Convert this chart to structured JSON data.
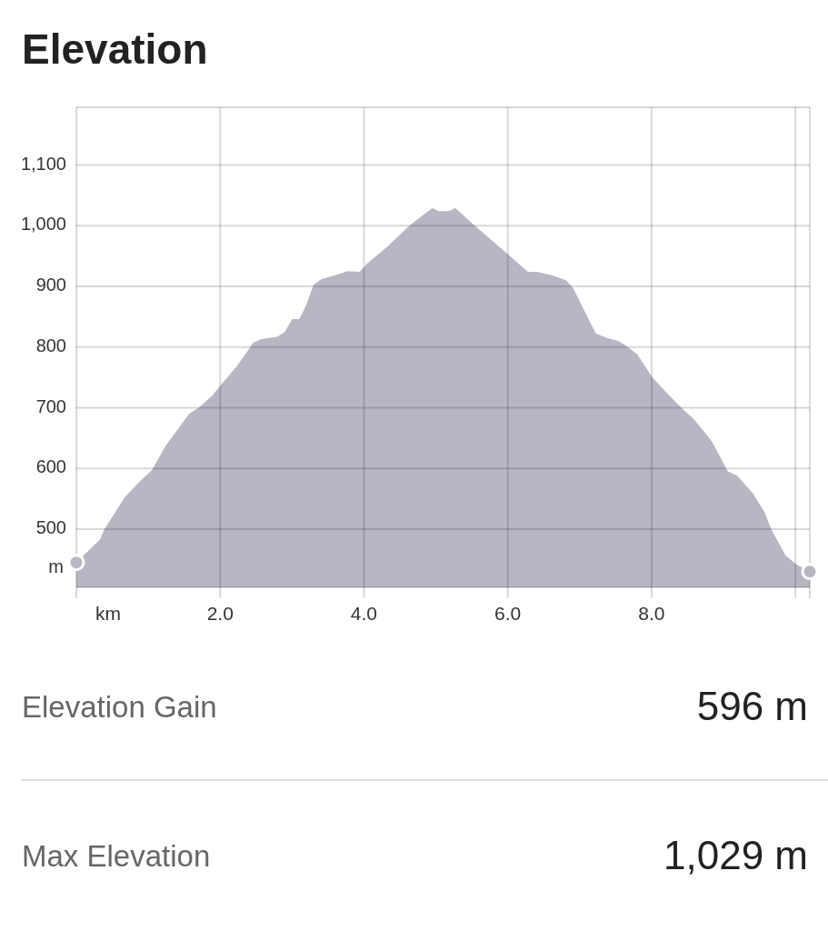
{
  "chart_data": {
    "type": "area",
    "title": "Elevation",
    "xlabel": "km",
    "ylabel": "m",
    "xlim": [
      0,
      10.2
    ],
    "ylim": [
      404,
      1195
    ],
    "xticks": [
      {
        "value": 0,
        "label": null
      },
      {
        "value": 2,
        "label": "2.0"
      },
      {
        "value": 4,
        "label": "4.0"
      },
      {
        "value": 6,
        "label": "6.0"
      },
      {
        "value": 8,
        "label": "8.0"
      },
      {
        "value": 10,
        "label": null
      }
    ],
    "yticks": [
      500,
      600,
      700,
      800,
      900,
      {
        "value": 1000,
        "label": "1,000"
      },
      {
        "value": 1100,
        "label": "1,100"
      }
    ],
    "grid": true,
    "series": [
      {
        "color": "#b7b7c4",
        "x": [
          0,
          0.2,
          0.33,
          0.39,
          0.67,
          0.88,
          1.05,
          1.24,
          1.57,
          1.7,
          1.89,
          2.02,
          2.23,
          2.46,
          2.57,
          2.8,
          2.9,
          3.0,
          3.1,
          3.2,
          3.3,
          3.41,
          3.62,
          3.77,
          3.94,
          4.04,
          4.34,
          4.63,
          4.95,
          5.04,
          5.18,
          5.27,
          5.52,
          6.01,
          6.28,
          6.41,
          6.62,
          6.81,
          6.91,
          7.16,
          7.23,
          7.38,
          7.54,
          7.67,
          7.8,
          8.01,
          8.22,
          8.43,
          8.58,
          8.77,
          8.85,
          9.06,
          9.19,
          9.4,
          9.57,
          9.67,
          9.86,
          10.01,
          10.2
        ],
        "values": [
          445,
          468,
          483,
          500,
          552,
          578,
          597,
          637,
          690,
          700,
          720,
          739,
          768,
          807,
          813,
          817,
          825,
          846,
          846,
          870,
          903,
          912,
          919,
          925,
          924,
          937,
          967,
          1000,
          1029,
          1024,
          1024,
          1029,
          1002,
          952,
          924,
          924,
          918,
          910,
          897,
          837,
          822,
          815,
          810,
          800,
          788,
          750,
          723,
          698,
          682,
          655,
          642,
          595,
          588,
          560,
          528,
          498,
          457,
          442,
          430
        ]
      },
      {
        "type": "scatter",
        "color": "#b7b7c4",
        "marker": "circle",
        "x": [
          0,
          10.2
        ],
        "values": [
          445,
          430
        ]
      }
    ],
    "annotations": [
      "Elevation Gain",
      "596 m",
      "Max Elevation",
      "1,029 m"
    ]
  }
}
